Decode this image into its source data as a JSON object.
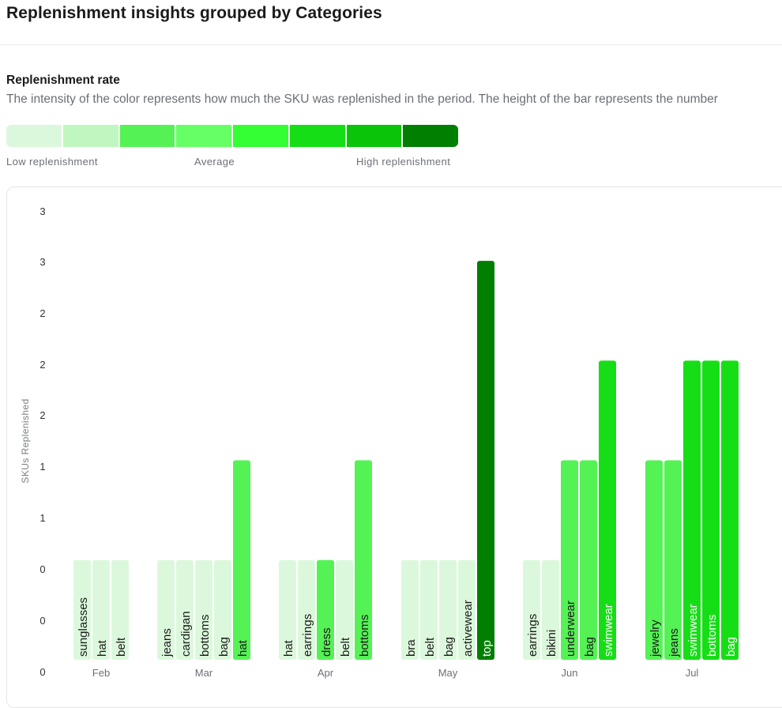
{
  "header": {
    "title": "Replenishment insights grouped by Categories"
  },
  "section": {
    "title": "Replenishment rate",
    "description": "The intensity of the color represents how much the SKU was replenished in the period. The height of the bar represents the number"
  },
  "legend": {
    "low_label": "Low replenishment",
    "mid_label": "Average",
    "high_label": "High replenishment",
    "colors": [
      "#dcf8dc",
      "#c0f7c0",
      "#55f255",
      "#66ff66",
      "#33ff33",
      "#16de16",
      "#0ac40a",
      "#007f00"
    ]
  },
  "chart_data": {
    "type": "bar",
    "ylabel": "SKUs Replenished",
    "y_tick_labels": [
      "0",
      "0",
      "0",
      "1",
      "1",
      "2",
      "2",
      "2",
      "3",
      "3"
    ],
    "ylim": [
      0,
      4.5
    ],
    "groups": [
      {
        "label": "Feb",
        "bars": [
          {
            "category": "sunglasses",
            "value": 1,
            "color": "#dcf8dc"
          },
          {
            "category": "hat",
            "value": 1,
            "color": "#dcf8dc"
          },
          {
            "category": "belt",
            "value": 1,
            "color": "#dcf8dc"
          }
        ]
      },
      {
        "label": "Mar",
        "bars": [
          {
            "category": "jeans",
            "value": 1,
            "color": "#dcf8dc"
          },
          {
            "category": "cardigan",
            "value": 1,
            "color": "#dcf8dc"
          },
          {
            "category": "bottoms",
            "value": 1,
            "color": "#dcf8dc"
          },
          {
            "category": "bag",
            "value": 1,
            "color": "#dcf8dc"
          },
          {
            "category": "hat",
            "value": 2,
            "color": "#55f255"
          }
        ]
      },
      {
        "label": "Apr",
        "bars": [
          {
            "category": "hat",
            "value": 1,
            "color": "#dcf8dc"
          },
          {
            "category": "earrings",
            "value": 1,
            "color": "#dcf8dc"
          },
          {
            "category": "dress",
            "value": 1,
            "color": "#55f255"
          },
          {
            "category": "belt",
            "value": 1,
            "color": "#dcf8dc"
          },
          {
            "category": "bottoms",
            "value": 2,
            "color": "#55f255"
          }
        ]
      },
      {
        "label": "May",
        "bars": [
          {
            "category": "bra",
            "value": 1,
            "color": "#dcf8dc"
          },
          {
            "category": "belt",
            "value": 1,
            "color": "#dcf8dc"
          },
          {
            "category": "bag",
            "value": 1,
            "color": "#dcf8dc"
          },
          {
            "category": "activewear",
            "value": 1,
            "color": "#dcf8dc"
          },
          {
            "category": "top",
            "value": 4,
            "color": "#007f00"
          }
        ]
      },
      {
        "label": "Jun",
        "bars": [
          {
            "category": "earrings",
            "value": 1,
            "color": "#dcf8dc"
          },
          {
            "category": "bikini",
            "value": 1,
            "color": "#dcf8dc"
          },
          {
            "category": "underwear",
            "value": 2,
            "color": "#55f255"
          },
          {
            "category": "bag",
            "value": 2,
            "color": "#55f255"
          },
          {
            "category": "swimwear",
            "value": 3,
            "color": "#16de16"
          }
        ]
      },
      {
        "label": "Jul",
        "bars": [
          {
            "category": "jewelry",
            "value": 2,
            "color": "#55f255"
          },
          {
            "category": "jeans",
            "value": 2,
            "color": "#55f255"
          },
          {
            "category": "swimwear",
            "value": 3,
            "color": "#16de16"
          },
          {
            "category": "bottoms",
            "value": 3,
            "color": "#16de16"
          },
          {
            "category": "bag",
            "value": 3,
            "color": "#16de16"
          }
        ]
      }
    ]
  }
}
